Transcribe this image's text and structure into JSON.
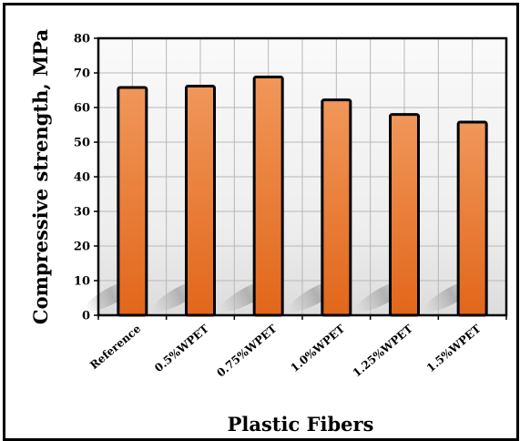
{
  "chart_data": {
    "type": "bar",
    "title": "",
    "xlabel": "Plastic Fibers",
    "ylabel": "Compressive strength, MPa",
    "categories": [
      "Reference",
      "0.5%WPET",
      "0.75%WPET",
      "1.0%WPET",
      "1.25%WPET",
      "1.5%WPET"
    ],
    "values": [
      65.8,
      66.2,
      68.8,
      62.2,
      58.0,
      55.8
    ],
    "ylim": [
      0,
      80
    ],
    "yticks": [
      0,
      10,
      20,
      30,
      40,
      50,
      60,
      70,
      80
    ],
    "grid": true,
    "legend": "none",
    "colors": {
      "bar_top": "#f0975a",
      "bar_bottom": "#e2661a",
      "bar_stroke": "#000000",
      "grid": "#b8b8b8",
      "plot_background": "#ececec"
    }
  }
}
